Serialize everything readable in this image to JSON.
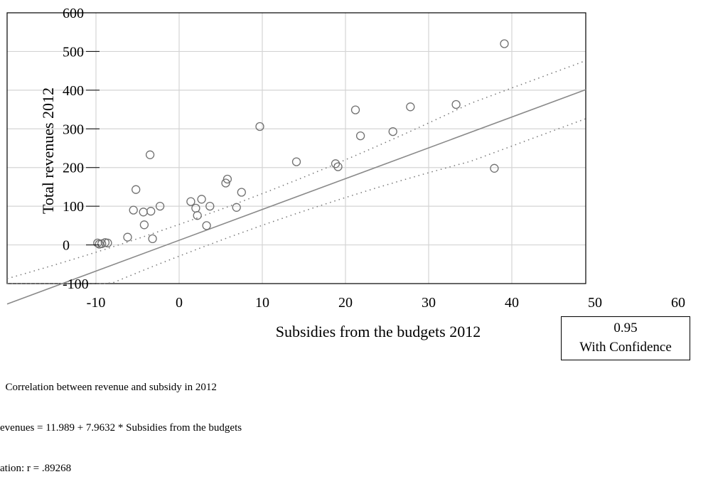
{
  "chart_data": {
    "type": "scatter",
    "xlabel": "Subsidies from the budgets 2012",
    "ylabel": "Total revenues  2012",
    "xlim": [
      -10,
      60
    ],
    "ylim": [
      -100,
      600
    ],
    "xticks": [
      -10,
      0,
      10,
      20,
      30,
      40,
      50,
      60
    ],
    "yticks": [
      -100,
      0,
      100,
      200,
      300,
      400,
      500,
      600
    ],
    "grid": true,
    "series": [
      {
        "points": [
          [
            -9.8,
            5
          ],
          [
            -9.6,
            2
          ],
          [
            -9.3,
            3
          ],
          [
            -8.9,
            6
          ],
          [
            -8.6,
            5
          ],
          [
            -6.2,
            20
          ],
          [
            -5.5,
            90
          ],
          [
            -5.2,
            143
          ],
          [
            -4.3,
            85
          ],
          [
            -4.2,
            52
          ],
          [
            -3.5,
            233
          ],
          [
            -3.4,
            87
          ],
          [
            -3.2,
            16
          ],
          [
            -2.3,
            100
          ],
          [
            1.4,
            112
          ],
          [
            2.0,
            95
          ],
          [
            2.2,
            76
          ],
          [
            2.7,
            118
          ],
          [
            3.3,
            50
          ],
          [
            3.7,
            100
          ],
          [
            5.6,
            160
          ],
          [
            5.8,
            170
          ],
          [
            6.9,
            97
          ],
          [
            7.5,
            136
          ],
          [
            9.7,
            306
          ],
          [
            14.1,
            215
          ],
          [
            18.8,
            210
          ],
          [
            19.1,
            202
          ],
          [
            21.2,
            349
          ],
          [
            21.8,
            282
          ],
          [
            25.7,
            293
          ],
          [
            27.8,
            357
          ],
          [
            33.3,
            363
          ],
          [
            37.9,
            198
          ],
          [
            39.1,
            520
          ]
        ]
      }
    ],
    "regression": {
      "intercept": 11.989,
      "slope": 7.9632
    },
    "confidence_band_halfwidth": [
      40,
      75
    ]
  },
  "confidence": {
    "value": "0.95",
    "label": "With Confidence"
  },
  "notes": {
    "line1": "  Correlation between revenue and subsidy in 2012",
    "line2": "evenues = 11.989 + 7.9632 * Subsidies from the budgets",
    "line3": "ation: r = .89268"
  }
}
